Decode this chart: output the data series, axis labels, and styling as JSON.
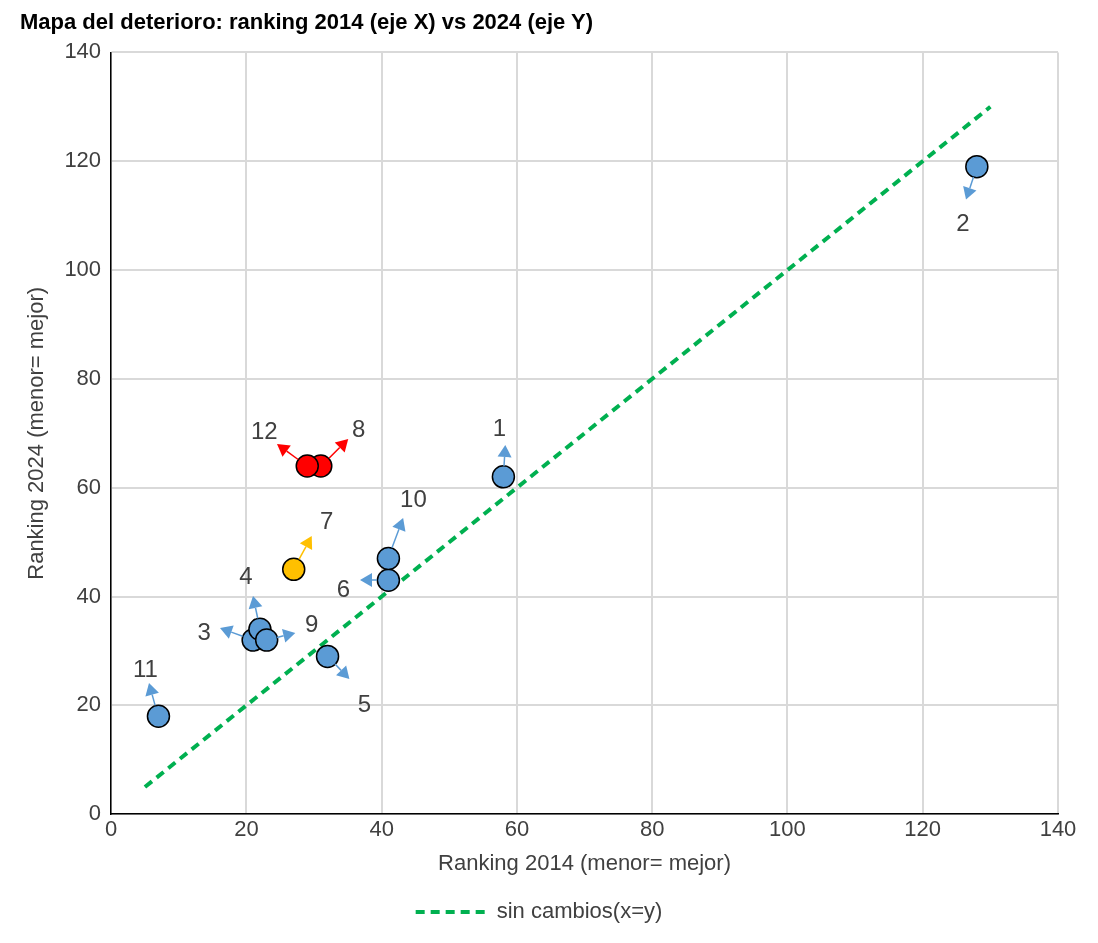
{
  "chart_data": {
    "type": "scatter",
    "title": "Mapa del deterioro: ranking 2014 (eje X) vs 2024 (eje Y)",
    "xlabel": "Ranking 2014 (menor= mejor)",
    "ylabel": "Ranking 2024 (menor= mejor)",
    "xlim": [
      0,
      140
    ],
    "xticks": [
      0,
      20,
      40,
      60,
      80,
      100,
      120,
      140
    ],
    "ylim": [
      0,
      140
    ],
    "yticks": [
      0,
      20,
      40,
      60,
      80,
      100,
      120,
      140
    ],
    "grid": true,
    "legend": "bottom",
    "marker": "circle",
    "series": [
      {
        "x": [
          58,
          128,
          21,
          22,
          32,
          41,
          27,
          31,
          23,
          41,
          7,
          29
        ],
        "values": [
          62,
          119,
          32,
          34,
          29,
          43,
          45,
          64,
          32,
          47,
          18,
          64
        ],
        "colors": [
          "#5b9bd5",
          "#5b9bd5",
          "#5b9bd5",
          "#5b9bd5",
          "#5b9bd5",
          "#5b9bd5",
          "#ffc000",
          "#ff0000",
          "#5b9bd5",
          "#5b9bd5",
          "#5b9bd5",
          "#ff0000"
        ]
      },
      {
        "type": "line",
        "name": "sin cambios(x=y)",
        "color": "#00b050",
        "line_style": "dashed",
        "marker": "none",
        "x": [
          5,
          130
        ],
        "values": [
          5,
          130
        ]
      }
    ],
    "annotations": [
      {
        "text": "1",
        "x": 58,
        "y": 62
      },
      {
        "text": "2",
        "x": 128,
        "y": 119
      },
      {
        "text": "3",
        "x": 21,
        "y": 32
      },
      {
        "text": "4",
        "x": 22,
        "y": 34
      },
      {
        "text": "5",
        "x": 32,
        "y": 29
      },
      {
        "text": "6",
        "x": 41,
        "y": 43
      },
      {
        "text": "7",
        "x": 27,
        "y": 45
      },
      {
        "text": "8",
        "x": 31,
        "y": 64
      },
      {
        "text": "9",
        "x": 23,
        "y": 32
      },
      {
        "text": "10",
        "x": 41,
        "y": 47
      },
      {
        "text": "11",
        "x": 7,
        "y": 18
      },
      {
        "text": "12",
        "x": 29,
        "y": 64
      }
    ]
  }
}
